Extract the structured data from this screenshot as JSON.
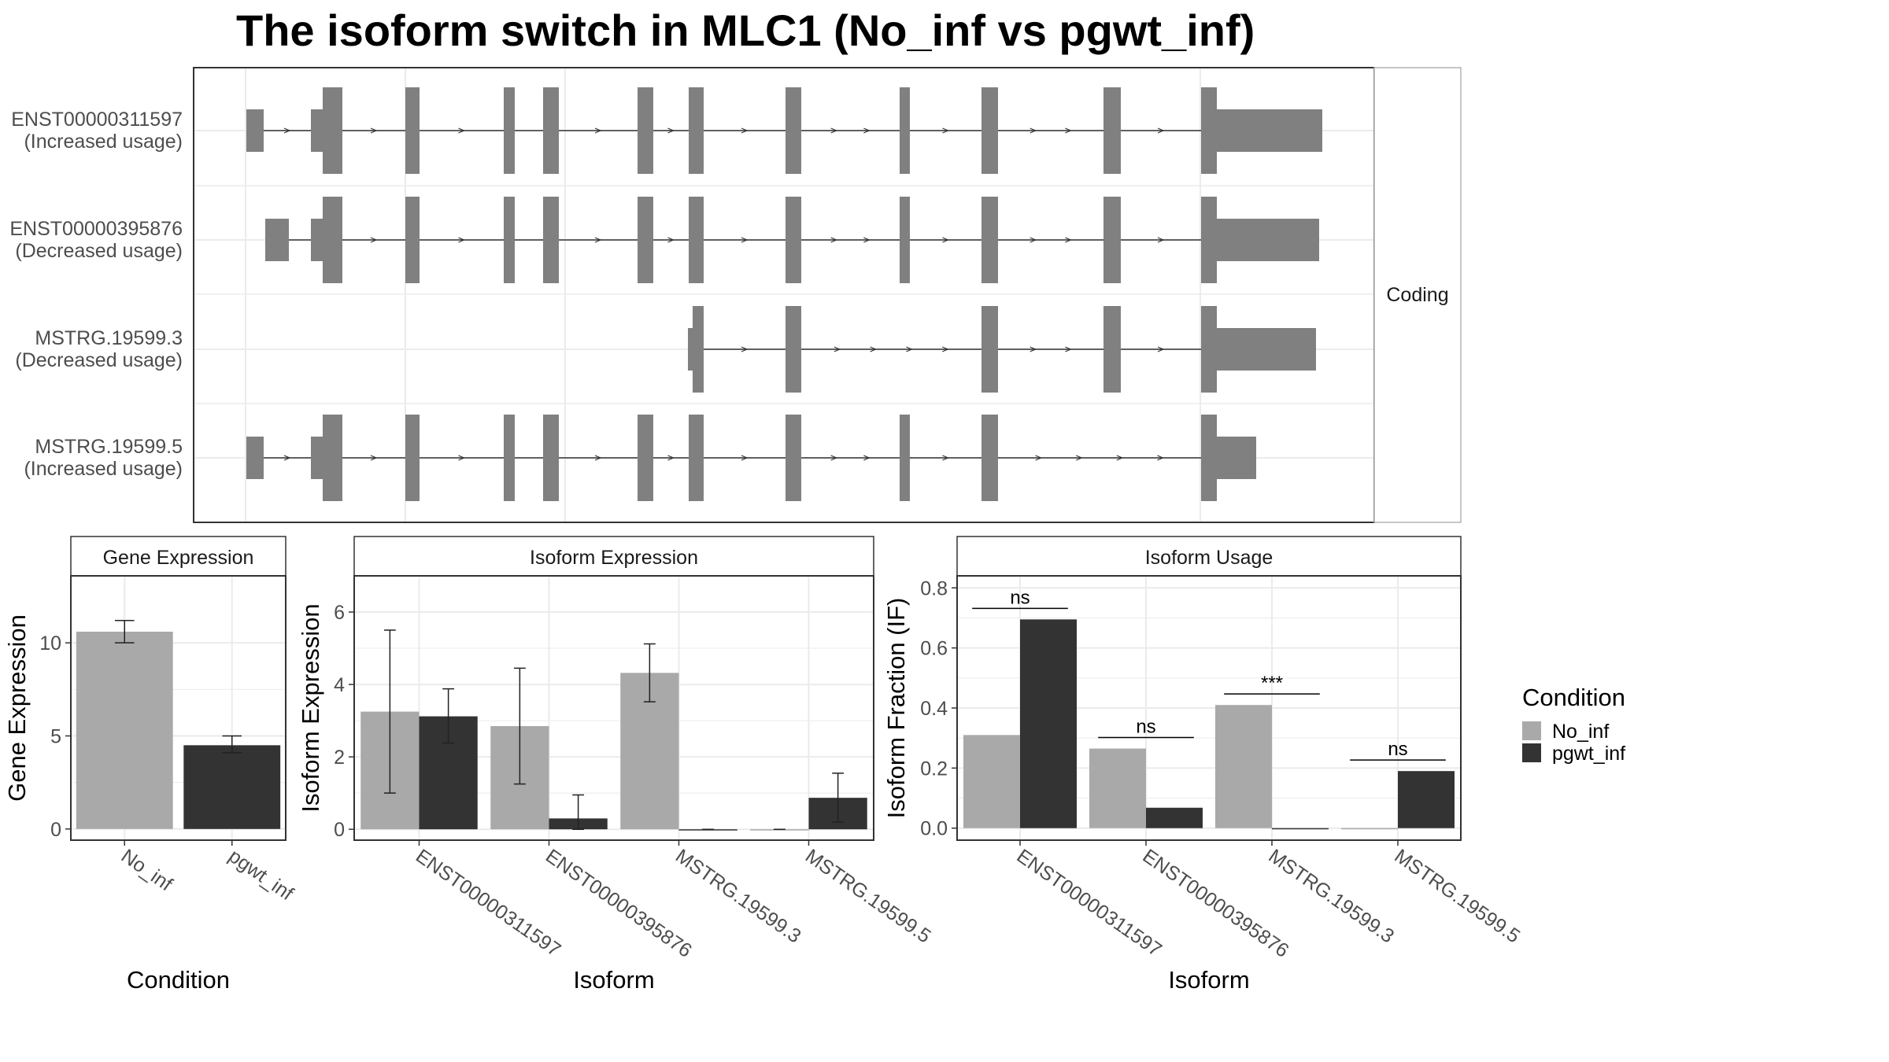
{
  "title": "The isoform switch in MLC1 (No_inf vs pgwt_inf)",
  "colors": {
    "No_inf": "#a9a9a9",
    "pgwt_inf": "#333333",
    "structure": "#808080",
    "grid": "#ebebeb",
    "strip_fill": "#ffffff"
  },
  "legend": {
    "title": "Condition",
    "items": [
      "No_inf",
      "pgwt_inf"
    ]
  },
  "chart_data": [
    {
      "type": "gene_structure",
      "strip": "Coding",
      "isoforms": [
        {
          "id": "ENST00000311597",
          "usage": "(Increased usage)"
        },
        {
          "id": "ENST00000395876",
          "usage": "(Decreased usage)"
        },
        {
          "id": "MSTRG.19599.3",
          "usage": "(Decreased usage)"
        },
        {
          "id": "MSTRG.19599.5",
          "usage": "(Increased usage)"
        }
      ]
    },
    {
      "type": "bar",
      "strip": "Gene Expression",
      "xlabel": "Condition",
      "ylabel": "Gene Expression",
      "categories": [
        "No_inf",
        "pgwt_inf"
      ],
      "values": [
        10.6,
        4.5
      ],
      "errors": [
        [
          10.0,
          11.2
        ],
        [
          4.1,
          5.0
        ]
      ],
      "ylim": [
        -0.6,
        13.6
      ],
      "yticks": [
        0,
        5,
        10
      ]
    },
    {
      "type": "bar",
      "strip": "Isoform Expression",
      "xlabel": "Isoform",
      "ylabel": "Isoform Expression",
      "categories": [
        "ENST00000311597",
        "ENST00000395876",
        "MSTRG.19599.3",
        "MSTRG.19599.5"
      ],
      "series": [
        {
          "name": "No_inf",
          "values": [
            3.25,
            2.85,
            4.32,
            0.0
          ],
          "errors": [
            [
              1.0,
              5.5
            ],
            [
              1.25,
              4.45
            ],
            [
              3.52,
              5.12
            ],
            [
              0.0,
              0.0
            ]
          ]
        },
        {
          "name": "pgwt_inf",
          "values": [
            3.12,
            0.3,
            0.0,
            0.87
          ],
          "errors": [
            [
              2.38,
              3.88
            ],
            [
              0.0,
              0.95
            ],
            [
              0.0,
              0.0
            ],
            [
              0.2,
              1.55
            ]
          ]
        }
      ],
      "ylim": [
        -0.3,
        7.0
      ],
      "yticks": [
        0,
        2,
        4,
        6
      ]
    },
    {
      "type": "bar",
      "strip": "Isoform Usage",
      "xlabel": "Isoform",
      "ylabel": "Isoform Fraction (IF)",
      "categories": [
        "ENST00000311597",
        "ENST00000395876",
        "MSTRG.19599.3",
        "MSTRG.19599.5"
      ],
      "series": [
        {
          "name": "No_inf",
          "values": [
            0.31,
            0.265,
            0.41,
            0.0
          ]
        },
        {
          "name": "pgwt_inf",
          "values": [
            0.695,
            0.068,
            0.0,
            0.19
          ]
        }
      ],
      "significance": [
        "ns",
        "ns",
        "***",
        "ns"
      ],
      "ylim": [
        -0.04,
        0.84
      ],
      "yticks": [
        0.0,
        0.2,
        0.4,
        0.6,
        0.8
      ],
      "ytick_labels": [
        "0.0",
        "0.2",
        "0.4",
        "0.6",
        "0.8"
      ]
    }
  ]
}
